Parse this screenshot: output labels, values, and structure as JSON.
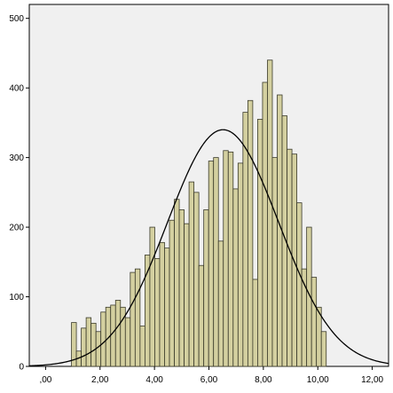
{
  "chart_data": {
    "type": "bar",
    "title": "",
    "xlabel": "",
    "ylabel": "",
    "xlim": [
      -0.6,
      12.6
    ],
    "ylim": [
      0,
      520
    ],
    "grid": false,
    "legend": "none",
    "x_ticks": [
      {
        "value": 0,
        "label": ",00"
      },
      {
        "value": 2,
        "label": "2,00"
      },
      {
        "value": 4,
        "label": "4,00"
      },
      {
        "value": 6,
        "label": "6,00"
      },
      {
        "value": 8,
        "label": "8,00"
      },
      {
        "value": 10,
        "label": "10,00"
      },
      {
        "value": 12,
        "label": "12,00"
      }
    ],
    "y_ticks": [
      {
        "value": 0,
        "label": "0"
      },
      {
        "value": 100,
        "label": "100"
      },
      {
        "value": 200,
        "label": "200"
      },
      {
        "value": 300,
        "label": "300"
      },
      {
        "value": 400,
        "label": "400"
      },
      {
        "value": 500,
        "label": "500"
      }
    ],
    "bin_width": 0.18,
    "bins_start": 0.95,
    "values": [
      63,
      22,
      55,
      70,
      62,
      50,
      78,
      85,
      88,
      95,
      85,
      70,
      135,
      140,
      58,
      160,
      200,
      155,
      178,
      170,
      210,
      240,
      225,
      205,
      265,
      250,
      145,
      225,
      295,
      300,
      180,
      310,
      308,
      255,
      292,
      365,
      382,
      125,
      355,
      408,
      440,
      300,
      390,
      360,
      312,
      305,
      235,
      140,
      200,
      128,
      85,
      50
    ],
    "normal_curve": {
      "mean": 6.52,
      "sd": 2.05,
      "peak": 340
    },
    "colors": {
      "bar_fill": "#d4d0a0",
      "bar_stroke": "#3a3a2a",
      "plot_bg": "#f0f0f0",
      "curve": "#000000",
      "axis": "#000000"
    }
  }
}
